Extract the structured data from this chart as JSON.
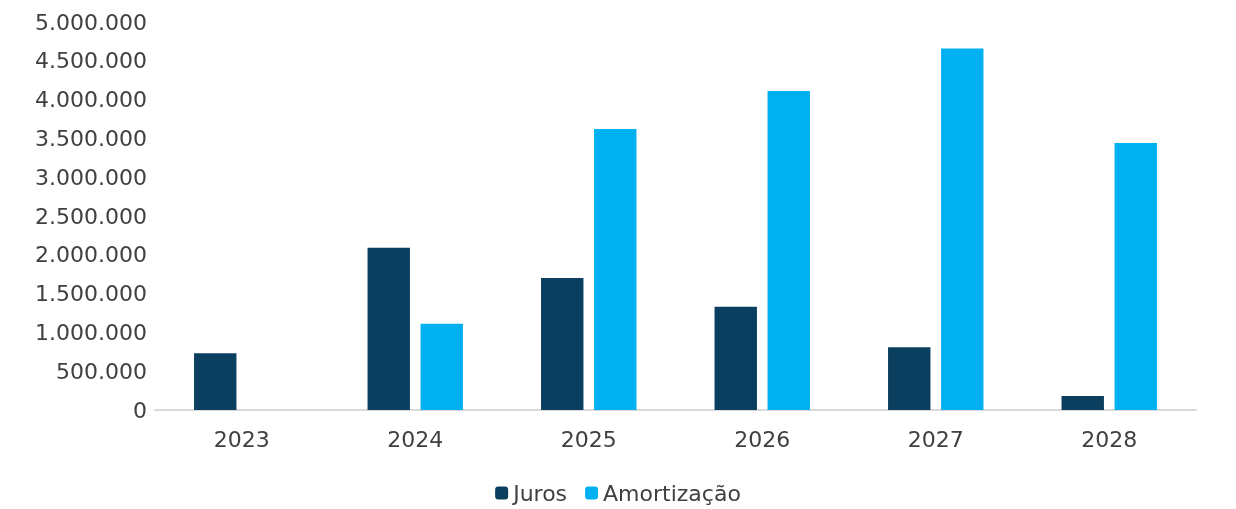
{
  "chart_data": {
    "type": "bar",
    "categories": [
      "2023",
      "2024",
      "2025",
      "2026",
      "2027",
      "2028"
    ],
    "series": [
      {
        "name": "Juros",
        "color": "#0b3f5f",
        "values": [
          730000,
          2090000,
          1700000,
          1330000,
          810000,
          180000
        ]
      },
      {
        "name": "Amortização",
        "color": "#00b0f0",
        "values": [
          0,
          1110000,
          3620000,
          4110000,
          4660000,
          3440000
        ]
      }
    ],
    "ylim": [
      0,
      5000000
    ],
    "yticks": [
      {
        "value": 0,
        "label": "0"
      },
      {
        "value": 500000,
        "label": "500.000"
      },
      {
        "value": 1000000,
        "label": "1.000.000"
      },
      {
        "value": 1500000,
        "label": "1.500.000"
      },
      {
        "value": 2000000,
        "label": "2.000.000"
      },
      {
        "value": 2500000,
        "label": "2.500.000"
      },
      {
        "value": 3000000,
        "label": "3.000.000"
      },
      {
        "value": 3500000,
        "label": "3.500.000"
      },
      {
        "value": 4000000,
        "label": "4.000.000"
      },
      {
        "value": 4500000,
        "label": "4.500.000"
      },
      {
        "value": 5000000,
        "label": "5.000.000"
      }
    ],
    "grid": false,
    "legend": "bottom"
  }
}
